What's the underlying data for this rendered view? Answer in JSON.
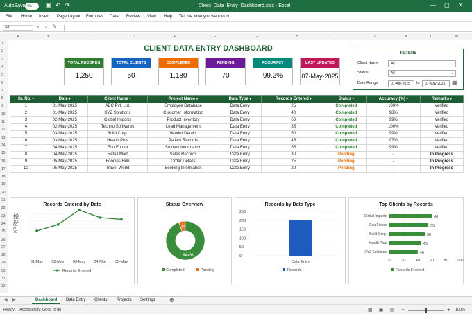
{
  "titlebar": {
    "autosave": "AutoSave",
    "toggle": "On",
    "filename": "Client_Data_Entry_Dashboard.xlsx",
    "app": "Excel"
  },
  "menu": [
    "File",
    "Home",
    "Insert",
    "Page Layout",
    "Formulas",
    "Data",
    "Review",
    "View",
    "Help",
    "Tell me what you want to do"
  ],
  "formula_bar": {
    "namebox": "A1",
    "fx": "fx",
    "value": ""
  },
  "columns": [
    "A",
    "B",
    "C",
    "D",
    "E",
    "F",
    "G",
    "H",
    "I",
    "J",
    "K",
    "L",
    "M",
    "N",
    "O"
  ],
  "rows": [
    "1",
    "2",
    "3",
    "4",
    "5",
    "6",
    "7",
    "8",
    "9",
    "10",
    "11",
    "12",
    "13",
    "14",
    "15",
    "16",
    "17",
    "18",
    "19",
    "20",
    "21",
    "22",
    "23",
    "24",
    "25",
    "26",
    "27",
    "28",
    "29",
    "30",
    "31",
    "32"
  ],
  "dashboard": {
    "title": "CLIENT DATA ENTRY DASHBOARD"
  },
  "kpis": [
    {
      "label": "TOTAL RECORDS",
      "value": "1,250",
      "color": "#2e7d32"
    },
    {
      "label": "TOTAL CLIENTS",
      "value": "50",
      "color": "#1565c0"
    },
    {
      "label": "COMPLETED",
      "value": "1,180",
      "color": "#ef6c00"
    },
    {
      "label": "PENDING",
      "value": "70",
      "color": "#6a1b9a"
    },
    {
      "label": "ACCURACY",
      "value": "99.2%",
      "color": "#00897b"
    },
    {
      "label": "LAST UPDATED",
      "value": "07-May-2025",
      "color": "#c2185b"
    }
  ],
  "filters": {
    "title": "FILTERS",
    "client_label": "Client Name",
    "client_value": "All",
    "status_label": "Status",
    "status_value": "All",
    "date_label": "Date Range",
    "date_from": "01-Apr-2025",
    "date_to_word": "to",
    "date_to": "07-May-2025"
  },
  "table": {
    "headers": [
      "Sr. No.",
      "Date",
      "Client Name",
      "Project Name",
      "Data Type",
      "Records Entered",
      "Status",
      "Accuracy (%)",
      "Remarks"
    ],
    "rows": [
      [
        "1",
        "01-May-2025",
        "ABC Pvt. Ltd.",
        "Employee Database",
        "Data Entry",
        "25",
        "Completed",
        "100%",
        "Verified"
      ],
      [
        "2",
        "01-May-2025",
        "XYZ Solutions",
        "Customer Information",
        "Data Entry",
        "40",
        "Completed",
        "98%",
        "Verified"
      ],
      [
        "3",
        "02-May-2025",
        "Global Imports",
        "Product Inventory",
        "Data Entry",
        "60",
        "Completed",
        "99%",
        "Verified"
      ],
      [
        "4",
        "02-May-2025",
        "Techno Softwares",
        "Lead Management",
        "Data Entry",
        "35",
        "Completed",
        "100%",
        "Verified"
      ],
      [
        "5",
        "03-May-2025",
        "Build Corp.",
        "Vendor Details",
        "Data Entry",
        "50",
        "Completed",
        "99%",
        "Verified"
      ],
      [
        "6",
        "03-May-2025",
        "Health Plus",
        "Patient Records",
        "Data Entry",
        "45",
        "Completed",
        "97%",
        "Verified"
      ],
      [
        "7",
        "04-May-2025",
        "Edu Future",
        "Student Information",
        "Data Entry",
        "55",
        "Completed",
        "99%",
        "Verified"
      ],
      [
        "8",
        "04-May-2025",
        "Retail Mart",
        "Sales Records",
        "Data Entry",
        "30",
        "Pending",
        "-",
        "In Progress"
      ],
      [
        "9",
        "05-May-2025",
        "Foodies Hub",
        "Order Details",
        "Data Entry",
        "25",
        "Pending",
        "-",
        "In Progress"
      ],
      [
        "10",
        "05-May-2025",
        "Travel World",
        "Booking Information",
        "Data Entry",
        "20",
        "Pending",
        "-",
        "In Progress"
      ]
    ]
  },
  "chart_data": [
    {
      "type": "line",
      "title": "Records Entered by Date",
      "categories": [
        "01-May",
        "02-May",
        "03-May",
        "04-May",
        "05-May"
      ],
      "series": [
        {
          "name": "Records Entered",
          "values": [
            72,
            90,
            168,
            110,
            105
          ],
          "color": "#2e7d32"
        }
      ],
      "ylim": [
        0,
        120
      ],
      "yticks": [
        "120",
        "110",
        "100",
        "90",
        "80",
        "70"
      ],
      "ytick_values": [
        120,
        110,
        100,
        90,
        80,
        70
      ]
    },
    {
      "type": "pie",
      "title": "Status Overview",
      "slices": [
        {
          "name": "Completed",
          "value": 94.4,
          "label": "94.4%",
          "color": "#3a8d3a"
        },
        {
          "name": "Pending",
          "value": 5.6,
          "label": "5.6%",
          "color": "#f07020"
        }
      ]
    },
    {
      "type": "bar",
      "title": "Records by Data Type",
      "categories": [
        "Data Entry"
      ],
      "values": [
        200
      ],
      "ylim": [
        0,
        250
      ],
      "yticks": [
        "250",
        "200",
        "150",
        "100",
        "50",
        "0"
      ],
      "ytick_values": [
        250,
        200,
        150,
        100,
        50,
        0
      ],
      "series_name": "Records",
      "color": "#1e5bbf"
    },
    {
      "type": "bar",
      "orientation": "horizontal",
      "title": "Top Clients by Records",
      "categories": [
        "Global Imports",
        "Edu Future",
        "Build Corp.",
        "Health Plus",
        "XYZ Solutions"
      ],
      "values": [
        60,
        55,
        50,
        45,
        40
      ],
      "xlim": [
        0,
        100
      ],
      "xticks": [
        "0",
        "20",
        "40",
        "60",
        "80",
        "100"
      ],
      "xtick_values": [
        0,
        20,
        40,
        60,
        80,
        100
      ],
      "series_name": "Records Entered",
      "color": "#3a8d3a"
    }
  ],
  "sheet_tabs": [
    "Dashboard",
    "Data Entry",
    "Clients",
    "Projects",
    "Settings"
  ],
  "statusbar": {
    "ready": "Ready",
    "accessibility": "Accessibility: Good to go",
    "zoom": "100%"
  }
}
